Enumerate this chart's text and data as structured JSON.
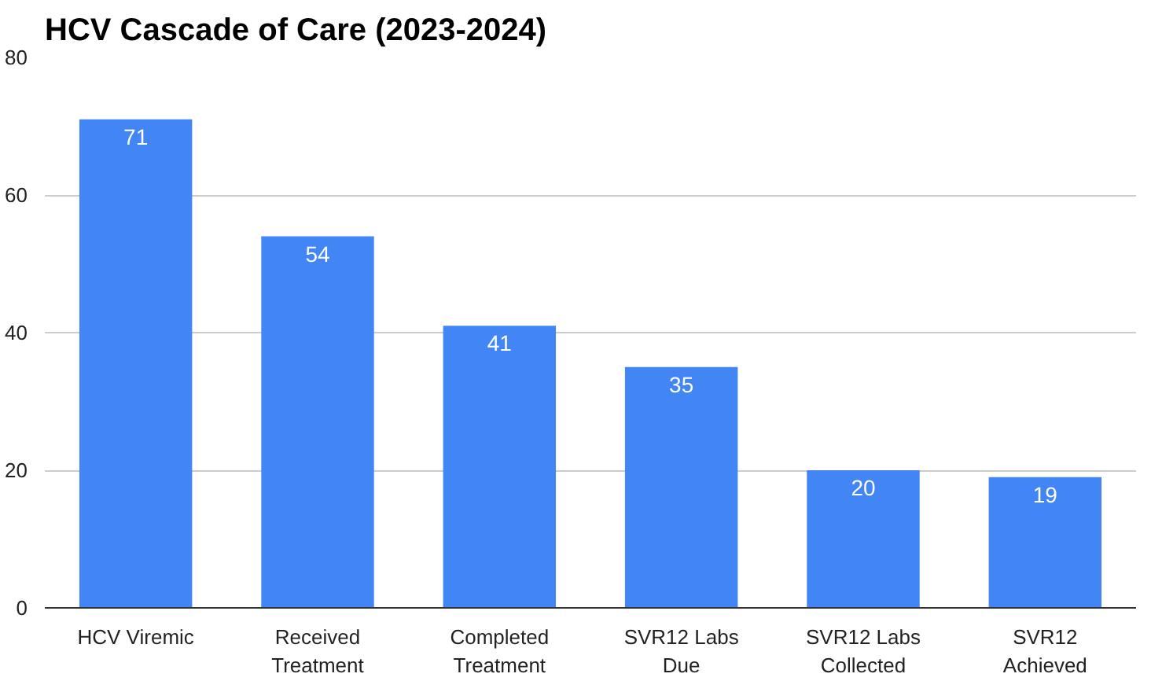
{
  "chart_data": {
    "type": "bar",
    "title": "HCV Cascade of Care (2023-2024)",
    "categories": [
      "HCV Viremic",
      "Received Treatment",
      "Completed Treatment",
      "SVR12 Labs Due",
      "SVR12 Labs Collected",
      "SVR12 Achieved"
    ],
    "values": [
      71,
      54,
      41,
      35,
      20,
      19
    ],
    "color": "#4285f4",
    "data_labels": true,
    "ylim": [
      0,
      80
    ],
    "yticks": [
      0,
      20,
      40,
      60,
      80
    ],
    "grid": "y"
  }
}
